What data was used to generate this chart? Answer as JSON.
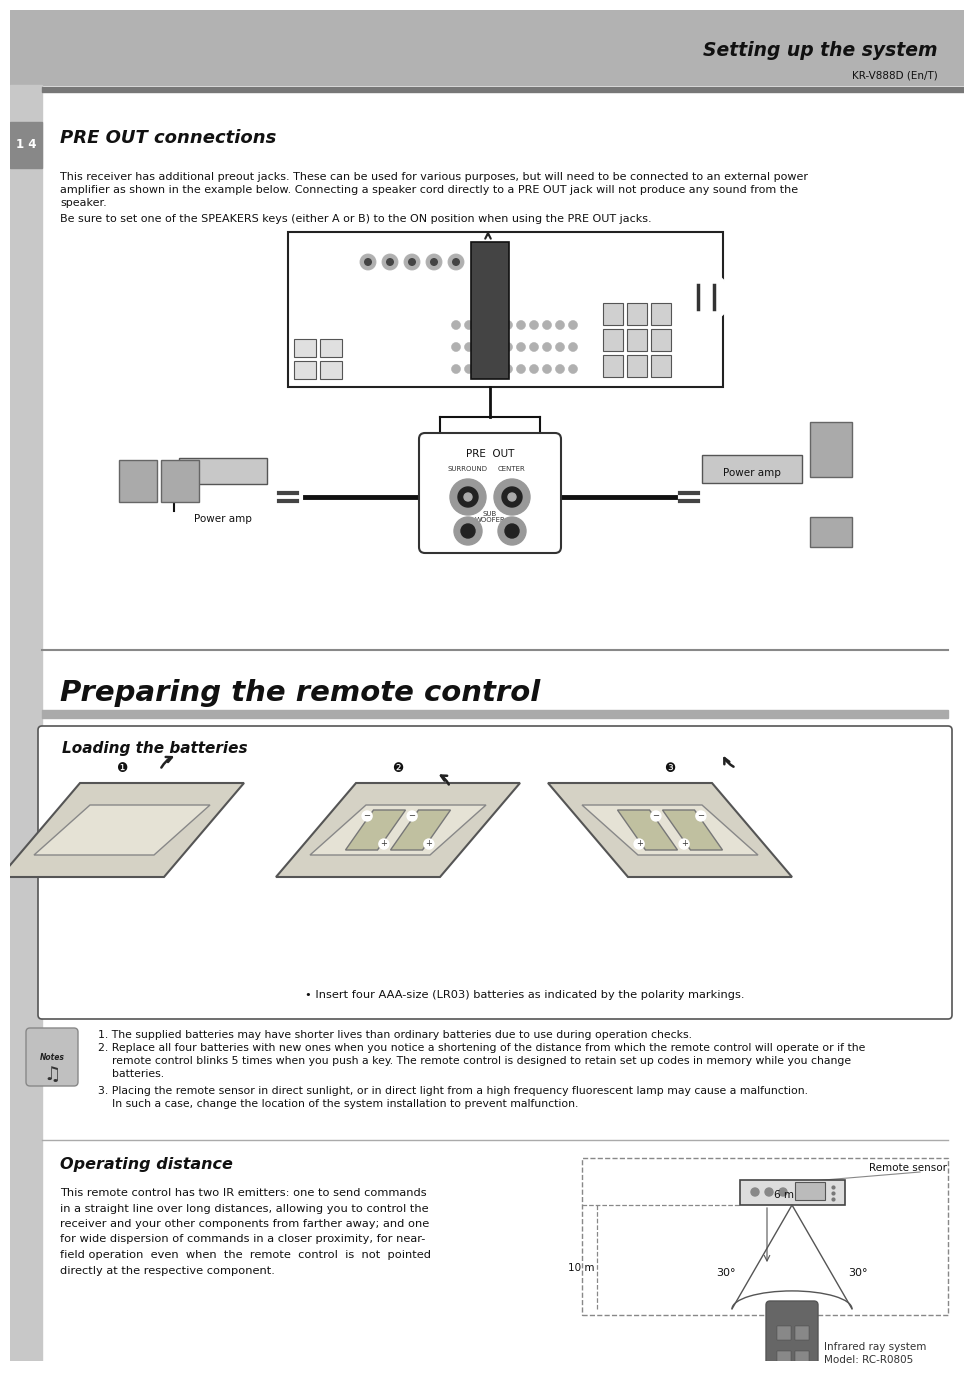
{
  "page_bg": "#ffffff",
  "header_bg": "#b2b2b2",
  "header_text": "Setting up the system",
  "header_subtext": "KR-V888D (En/T)",
  "section_number": "1 4",
  "section_title": "PRE OUT connections",
  "body_text_1a": "This receiver has additional preout jacks. These can be used for various purposes, but will need to be connected to an external power",
  "body_text_1b": "amplifier as shown in the example below. Connecting a speaker cord directly to a PRE OUT jack will not produce any sound from the",
  "body_text_1c": "speaker.",
  "body_text_2": "Be sure to set one of the SPEAKERS keys (either A or B) to the ON position when using the PRE OUT jacks.",
  "section2_title": "Preparing the remote control",
  "box_title": "Loading the batteries",
  "bullet_text": "• Insert four AAA-size (LR03) batteries as indicated by the polarity markings.",
  "notes_text_1": "1. The supplied batteries may have shorter lives than ordinary batteries due to use during operation checks.",
  "notes_text_2a": "2. Replace all four batteries with new ones when you notice a shortening of the distance from which the remote control will operate or if the",
  "notes_text_2b": "    remote control blinks 5 times when you push a key. The remote control is designed to retain set up codes in memory while you change",
  "notes_text_2c": "    batteries.",
  "notes_text_3a": "3. Placing the remote sensor in direct sunlight, or in direct light from a high frequency fluorescent lamp may cause a malfunction.",
  "notes_text_3b": "    In such a case, change the location of the system installation to prevent malfunction.",
  "section3_title": "Operating distance",
  "operating_text_lines": [
    "This remote control has two IR emitters: one to send commands",
    "in a straight line over long distances, allowing you to control the",
    "receiver and your other components from farther away; and one",
    "for wide dispersion of commands in a closer proximity, for near-",
    "field operation  even  when  the  remote  control  is  not  pointed",
    "directly at the respective component."
  ],
  "distance_label1": "6 m",
  "distance_label2": "10 m",
  "angle_label1": "30°",
  "angle_label2": "30°",
  "remote_sensor_label": "Remote sensor",
  "model_label1": "Model: RC-R0805",
  "model_label2": "Infrared ray system",
  "power_amp_label_right": "Power amp",
  "power_amp_label_left": "Power amp",
  "pre_out_label": "PRE  OUT",
  "surround_label": "SURROUND",
  "center_label": "CENTER",
  "sub_woofer_label": "SUB\nWOOFER",
  "sidebar_color": "#c8c8c8",
  "header_sep_color": "#777777",
  "num_box_color": "#888888"
}
